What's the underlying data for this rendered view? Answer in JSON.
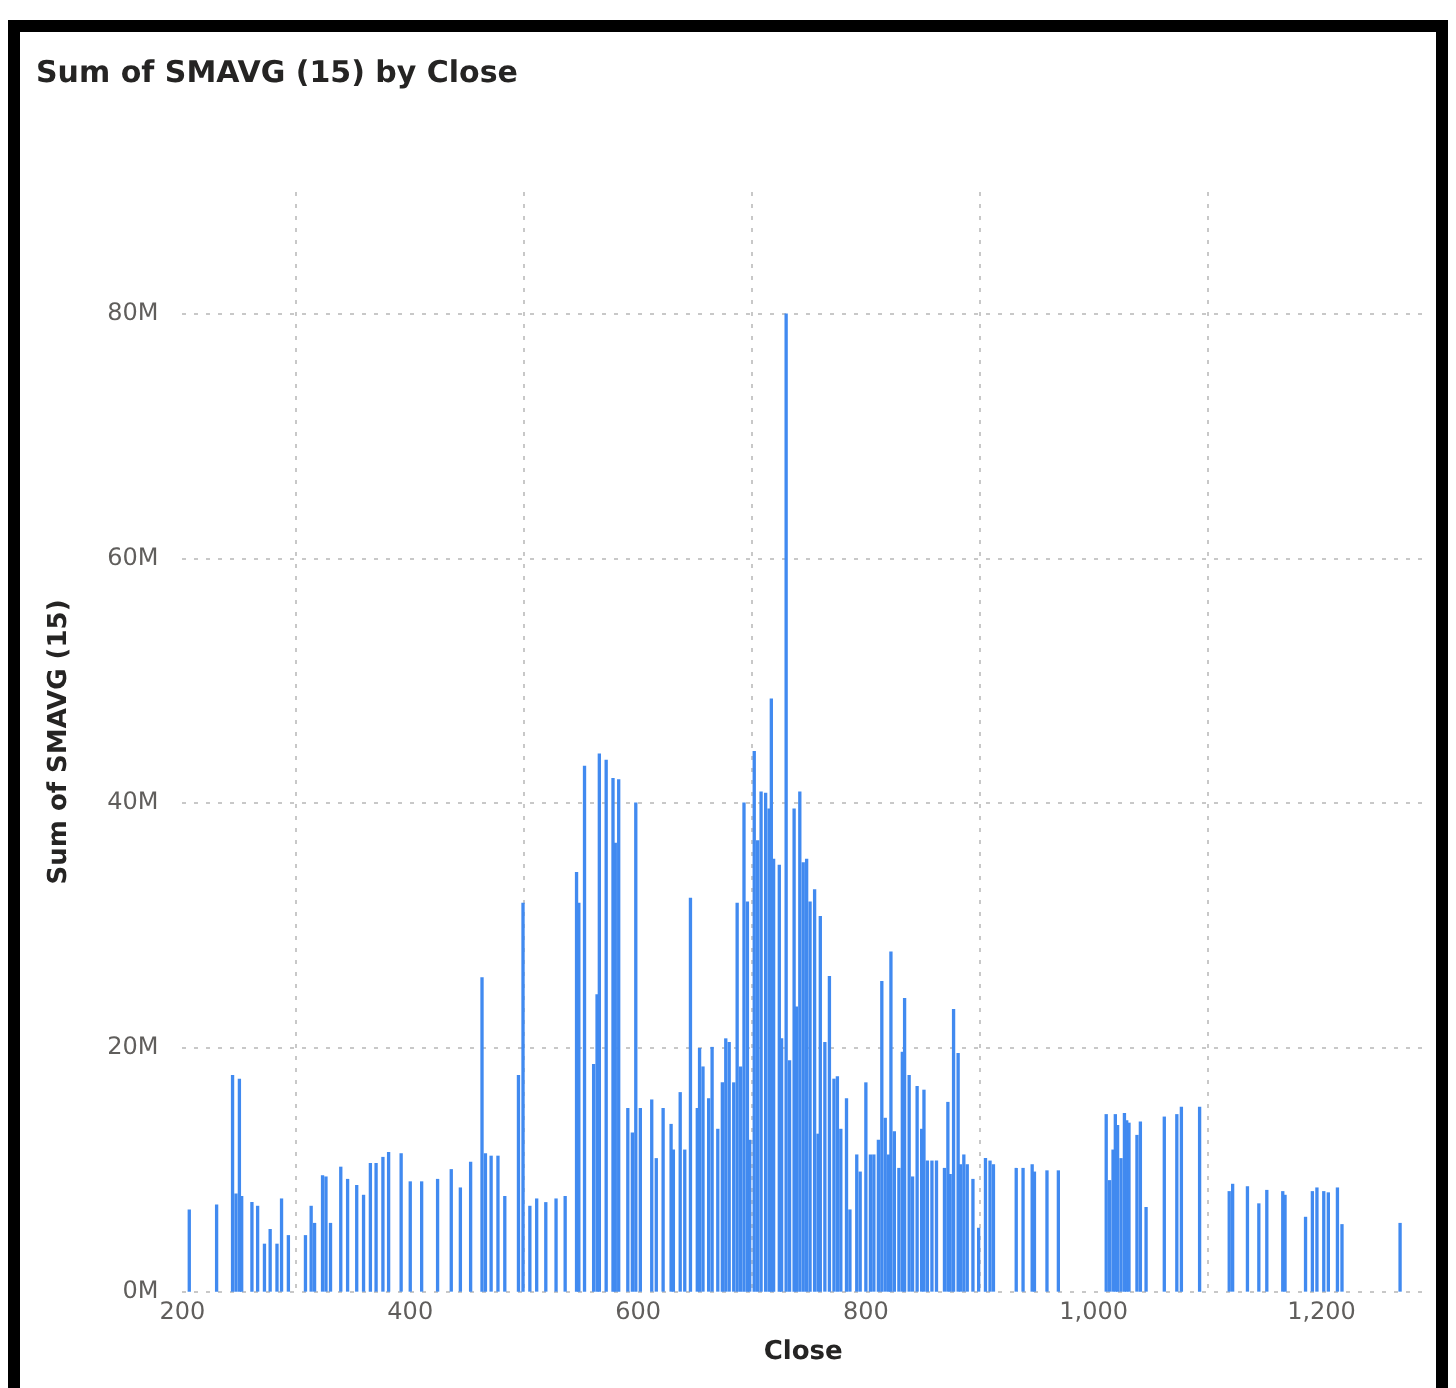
{
  "chart_data": {
    "type": "bar",
    "title": "Sum of SMAVG (15) by Close",
    "xlabel": "Close",
    "ylabel": "Sum of SMAVG (15)",
    "color": "#418af0",
    "grid": true,
    "x": [
      206,
      230,
      244,
      247,
      250,
      252,
      261,
      266,
      272,
      277,
      283,
      287,
      293,
      308,
      313,
      316,
      323,
      326,
      330,
      339,
      345,
      353,
      359,
      365,
      370,
      376,
      381,
      392,
      400,
      410,
      424,
      436,
      444,
      453,
      463,
      466,
      471,
      477,
      483,
      495,
      499,
      505,
      511,
      519,
      528,
      536,
      546,
      548,
      553,
      561,
      564,
      566,
      572,
      578,
      580,
      583,
      591,
      595,
      598,
      602,
      612,
      616,
      622,
      629,
      631,
      637,
      641,
      646,
      652,
      654,
      657,
      662,
      665,
      670,
      674,
      677,
      680,
      684,
      687,
      690,
      693,
      696,
      698,
      702,
      705,
      708,
      712,
      715,
      717,
      719,
      724,
      726,
      730,
      733,
      737,
      739,
      742,
      745,
      748,
      751,
      755,
      758,
      760,
      764,
      768,
      772,
      775,
      778,
      783,
      786,
      792,
      795,
      800,
      804,
      807,
      811,
      814,
      817,
      820,
      822,
      825,
      829,
      832,
      834,
      838,
      841,
      845,
      849,
      851,
      854,
      858,
      862,
      869,
      872,
      874,
      877,
      881,
      883,
      886,
      889,
      894,
      899,
      905,
      909,
      912,
      932,
      938,
      946,
      948,
      959,
      969,
      1011,
      1014,
      1017,
      1019,
      1021,
      1024,
      1027,
      1029,
      1031,
      1038,
      1041,
      1046,
      1062,
      1073,
      1077,
      1093,
      1119,
      1122,
      1135,
      1145,
      1152,
      1166,
      1168,
      1186,
      1192,
      1196,
      1202,
      1206,
      1214,
      1218,
      1269
    ],
    "values": [
      6.7,
      7.1,
      17.7,
      8.0,
      17.4,
      7.8,
      7.3,
      7.0,
      3.9,
      5.1,
      3.9,
      7.6,
      4.6,
      4.6,
      7.0,
      5.6,
      9.5,
      9.4,
      5.6,
      10.2,
      9.2,
      8.7,
      7.9,
      10.5,
      10.5,
      11.0,
      11.4,
      11.3,
      9.0,
      9.0,
      9.2,
      10.0,
      8.5,
      10.6,
      25.7,
      11.3,
      11.1,
      11.1,
      7.8,
      17.7,
      31.8,
      7.0,
      7.6,
      7.3,
      7.6,
      7.8,
      34.3,
      31.8,
      43,
      18.6,
      24.3,
      44,
      43.5,
      42,
      36.7,
      41.9,
      15.0,
      13,
      40.0,
      15.0,
      15.7,
      10.9,
      15.0,
      13.7,
      11.6,
      16.3,
      11.6,
      32.2,
      15.0,
      19.9,
      18.4,
      15.8,
      20.0,
      13.3,
      17.1,
      20.7,
      20.4,
      17.1,
      31.8,
      18.4,
      40.0,
      31.9,
      12.4,
      44.2,
      36.9,
      40.9,
      40.8,
      39.5,
      48.5,
      35.4,
      34.9,
      20.7,
      80,
      18.9,
      39.5,
      23.3,
      40.9,
      35.1,
      35.4,
      31.9,
      32.9,
      12.9,
      30.7,
      20.4,
      25.8,
      17.4,
      17.6,
      13.3,
      15.8,
      6.7,
      11.2,
      9.8,
      17.1,
      11.2,
      11.2,
      12.4,
      25.4,
      14.2,
      11.2,
      27.8,
      13.1,
      10.1,
      19.6,
      24.0,
      17.7,
      9.4,
      16.8,
      13.3,
      16.5,
      10.7,
      10.7,
      10.7,
      10.1,
      15.5,
      9.6,
      23.1,
      19.5,
      10.4,
      11.2,
      10.4,
      9.2,
      5.2,
      10.9,
      10.7,
      10.4,
      10.1,
      10.1,
      10.4,
      9.8,
      9.9,
      9.9,
      14.5,
      9.1,
      11.6,
      14.5,
      13.6,
      10.9,
      14.6,
      14.0,
      13.8,
      12.8,
      13.9,
      6.9,
      14.3,
      14.5,
      15.1,
      15.1,
      8.2,
      8.8,
      8.6,
      7.2,
      8.3,
      8.2,
      7.9,
      6.1,
      8.2,
      8.5,
      8.2,
      8.1,
      8.5,
      5.5,
      5.6
    ],
    "xlim": [
      200,
      1290
    ],
    "xticks": [
      200,
      400,
      600,
      800,
      {
        "value": 1000,
        "label": "1,000"
      },
      {
        "value": 1200,
        "label": "1,200"
      }
    ],
    "ylim": [
      0,
      90
    ],
    "yticks": [
      {
        "value": 0,
        "label": "0M"
      },
      {
        "value": 20,
        "label": "20M"
      },
      {
        "value": 40,
        "label": "40M"
      },
      {
        "value": 60,
        "label": "60M"
      },
      {
        "value": 80,
        "label": "80M"
      }
    ]
  }
}
